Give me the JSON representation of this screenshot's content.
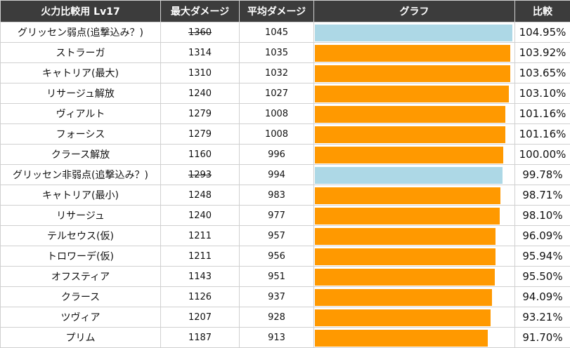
{
  "colors": {
    "header_bg": "#3c3c3c",
    "bar_normal": "#ff9900",
    "bar_special": "#add8e6"
  },
  "headers": {
    "name": "火力比較用 Lv17",
    "max": "最大ダメージ",
    "avg": "平均ダメージ",
    "graph": "グラフ",
    "ratio": "比較"
  },
  "chart_data": {
    "type": "table",
    "columns": [
      "火力比較用 Lv17",
      "最大ダメージ",
      "平均ダメージ",
      "グラフ",
      "比較"
    ],
    "rows": [
      {
        "name": "グリッセン弱点(追撃込み？)",
        "max": "1360",
        "max_struck": true,
        "avg": "1045",
        "ratio": "104.95%",
        "ratio_value": 104.95,
        "bar": "special"
      },
      {
        "name": "ストラーガ",
        "max": "1314",
        "max_struck": false,
        "avg": "1035",
        "ratio": "103.92%",
        "ratio_value": 103.92,
        "bar": "normal"
      },
      {
        "name": "キャトリア(最大)",
        "max": "1310",
        "max_struck": false,
        "avg": "1032",
        "ratio": "103.65%",
        "ratio_value": 103.65,
        "bar": "normal"
      },
      {
        "name": "リサージュ解放",
        "max": "1240",
        "max_struck": false,
        "avg": "1027",
        "ratio": "103.10%",
        "ratio_value": 103.1,
        "bar": "normal"
      },
      {
        "name": "ヴィアルト",
        "max": "1279",
        "max_struck": false,
        "avg": "1008",
        "ratio": "101.16%",
        "ratio_value": 101.16,
        "bar": "normal"
      },
      {
        "name": "フォーシス",
        "max": "1279",
        "max_struck": false,
        "avg": "1008",
        "ratio": "101.16%",
        "ratio_value": 101.16,
        "bar": "normal"
      },
      {
        "name": "クラース解放",
        "max": "1160",
        "max_struck": false,
        "avg": "996",
        "ratio": "100.00%",
        "ratio_value": 100.0,
        "bar": "normal"
      },
      {
        "name": "グリッセン非弱点(追撃込み？)",
        "max": "1293",
        "max_struck": true,
        "avg": "994",
        "ratio": "99.78%",
        "ratio_value": 99.78,
        "bar": "special"
      },
      {
        "name": "キャトリア(最小)",
        "max": "1248",
        "max_struck": false,
        "avg": "983",
        "ratio": "98.71%",
        "ratio_value": 98.71,
        "bar": "normal"
      },
      {
        "name": "リサージュ",
        "max": "1240",
        "max_struck": false,
        "avg": "977",
        "ratio": "98.10%",
        "ratio_value": 98.1,
        "bar": "normal"
      },
      {
        "name": "テルセウス(仮)",
        "max": "1211",
        "max_struck": false,
        "avg": "957",
        "ratio": "96.09%",
        "ratio_value": 96.09,
        "bar": "normal"
      },
      {
        "name": "トロワーデ(仮)",
        "max": "1211",
        "max_struck": false,
        "avg": "956",
        "ratio": "95.94%",
        "ratio_value": 95.94,
        "bar": "normal"
      },
      {
        "name": "オフスティア",
        "max": "1143",
        "max_struck": false,
        "avg": "951",
        "ratio": "95.50%",
        "ratio_value": 95.5,
        "bar": "normal"
      },
      {
        "name": "クラース",
        "max": "1126",
        "max_struck": false,
        "avg": "937",
        "ratio": "94.09%",
        "ratio_value": 94.09,
        "bar": "normal"
      },
      {
        "name": "ツヴィア",
        "max": "1207",
        "max_struck": false,
        "avg": "928",
        "ratio": "93.21%",
        "ratio_value": 93.21,
        "bar": "normal"
      },
      {
        "name": "プリム",
        "max": "1187",
        "max_struck": false,
        "avg": "913",
        "ratio": "91.70%",
        "ratio_value": 91.7,
        "bar": "normal"
      }
    ]
  }
}
